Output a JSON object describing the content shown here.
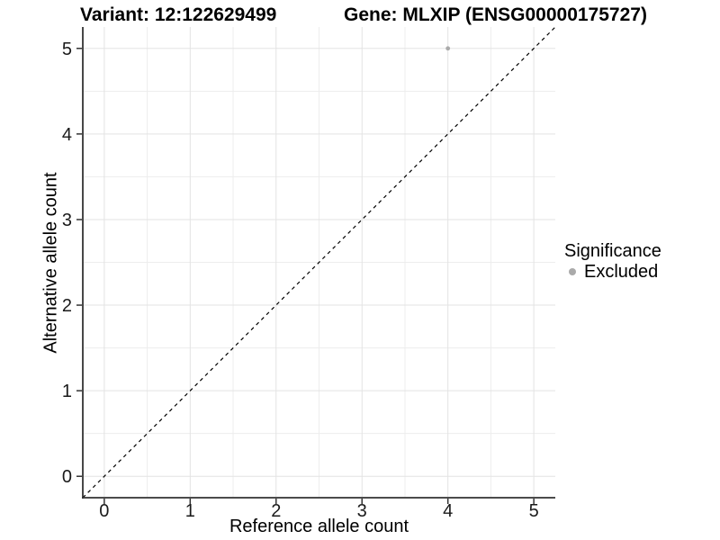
{
  "chart_data": {
    "type": "scatter",
    "title_left": "Variant: 12:122629499",
    "title_right": "Gene: MLXIP (ENSG00000175727)",
    "xlabel": "Reference allele count",
    "ylabel": "Alternative allele count",
    "xlim": [
      -0.25,
      5.25
    ],
    "ylim": [
      -0.25,
      5.25
    ],
    "xticks": [
      0,
      1,
      2,
      3,
      4,
      5
    ],
    "yticks": [
      0,
      1,
      2,
      3,
      4,
      5
    ],
    "minor_gridlines_at": [
      0.5,
      1.5,
      2.5,
      3.5,
      4.5
    ],
    "grid": true,
    "series": [
      {
        "name": "Excluded",
        "color": "#aaaaaa",
        "points": [
          {
            "x": 4,
            "y": 5
          }
        ]
      }
    ],
    "reference_line": {
      "kind": "identity",
      "slope": 1,
      "intercept": 0,
      "linestyle": "dashed",
      "color": "#000000"
    },
    "legend": {
      "title": "Significance",
      "position": "right",
      "items": [
        {
          "label": "Excluded",
          "color": "#aaaaaa"
        }
      ]
    },
    "colors": {
      "background": "#ffffff",
      "grid_major": "#e3e3e3",
      "grid_minor": "#ededed",
      "axis_line": "#333333",
      "tick_mark": "#333333",
      "tick_text": "#1a1a1a",
      "point": "#aaaaaa"
    }
  }
}
